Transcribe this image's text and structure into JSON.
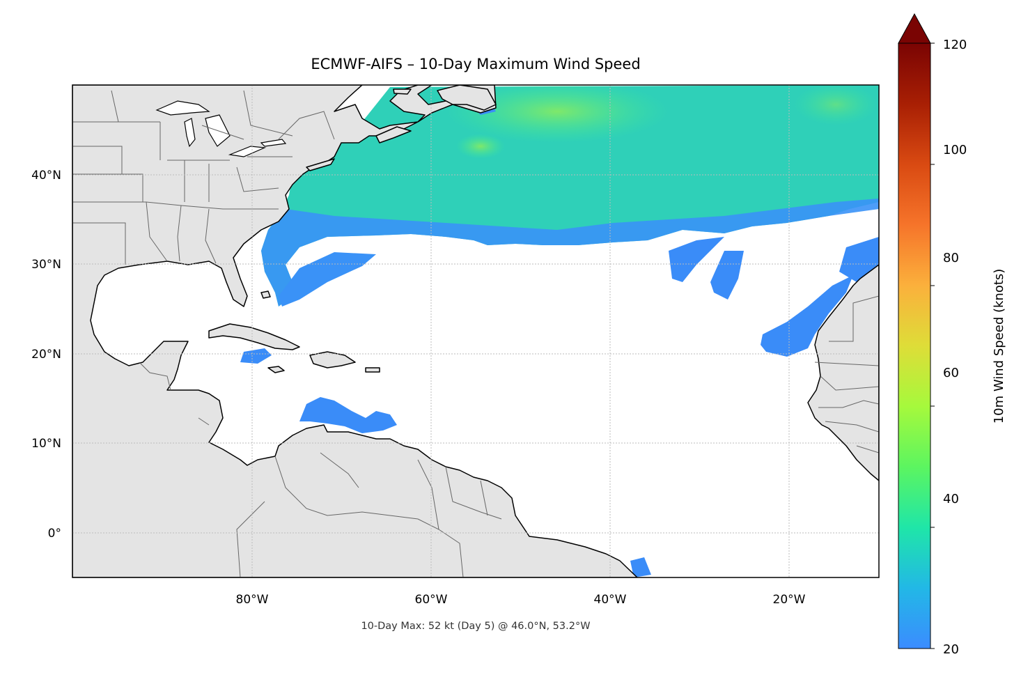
{
  "title": "ECMWF-AIFS – 10-Day Maximum Wind Speed",
  "footnote": "10-Day Max: 52 kt (Day 5) @ 46.0°N, 53.2°W",
  "map_extent": {
    "lon": [
      -100,
      -10
    ],
    "lat": [
      -5,
      50
    ]
  },
  "x_ticks": [
    {
      "value": -80,
      "label": "80°W"
    },
    {
      "value": -60,
      "label": "60°W"
    },
    {
      "value": -40,
      "label": "40°W"
    },
    {
      "value": -20,
      "label": "20°W"
    }
  ],
  "y_ticks": [
    {
      "value": 40,
      "label": "40°N"
    },
    {
      "value": 30,
      "label": "30°N"
    },
    {
      "value": 20,
      "label": "20°N"
    },
    {
      "value": 10,
      "label": "10°N"
    },
    {
      "value": 0,
      "label": "0°"
    }
  ],
  "colorbar": {
    "label": "10m Wind Speed (knots)",
    "range": [
      20,
      120
    ],
    "ticks": [
      {
        "value": 20,
        "label": "20"
      },
      {
        "value": 40,
        "label": "40"
      },
      {
        "value": 60,
        "label": "60"
      },
      {
        "value": 80,
        "label": "80"
      },
      {
        "value": 100,
        "label": "100"
      },
      {
        "value": 120,
        "label": "120"
      }
    ],
    "extend": "max"
  },
  "colors": {
    "land": "#e4e4e4",
    "coast": "#000000",
    "borders": "#666666",
    "grid": "#bbbbbb"
  }
}
